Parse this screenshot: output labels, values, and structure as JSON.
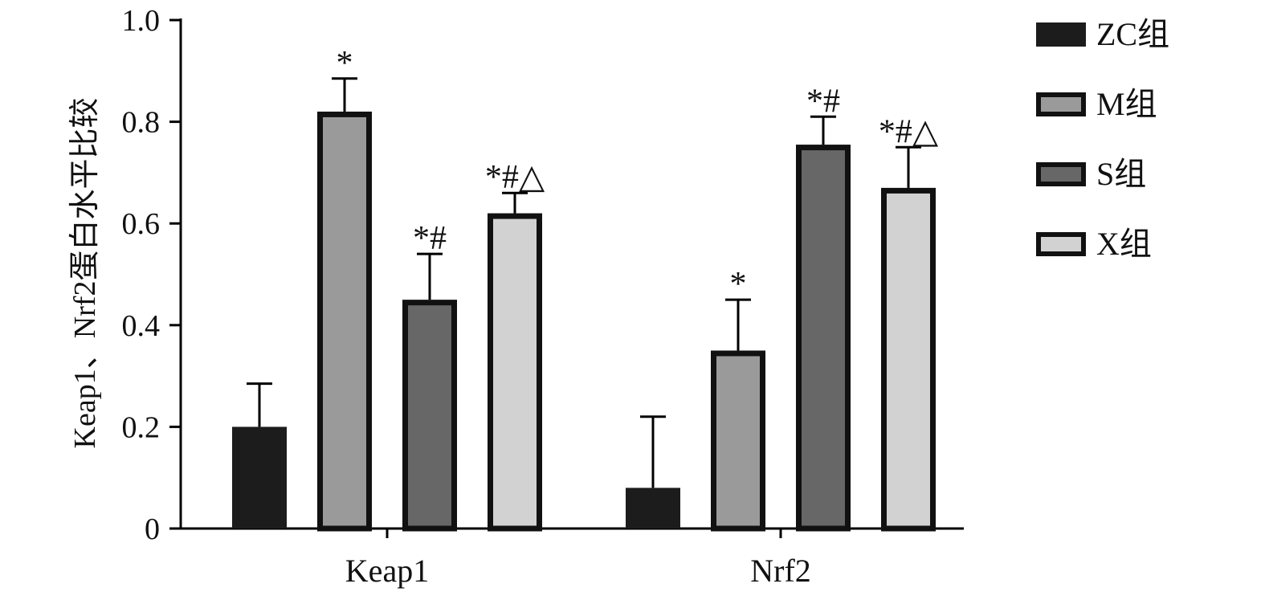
{
  "chart_data": {
    "type": "bar",
    "title": "",
    "xlabel": "",
    "ylabel": "Keap1、Nrf2蛋白水平比较",
    "ylim": [
      0,
      1.0
    ],
    "yticks": [
      "0",
      "0.2",
      "0.4",
      "0.6",
      "0.8",
      "1.0"
    ],
    "ytick_values": [
      0,
      0.2,
      0.4,
      0.6,
      0.8,
      1.0
    ],
    "categories": [
      "Keap1",
      "Nrf2"
    ],
    "legend_position": "right",
    "series": [
      {
        "name": "ZC组",
        "color": "#1c1c1c",
        "values": [
          0.2,
          0.08
        ],
        "errors": [
          0.085,
          0.14
        ],
        "annotations": [
          "",
          ""
        ]
      },
      {
        "name": "M组",
        "color": "#9a9a9a",
        "values": [
          0.82,
          0.35
        ],
        "errors": [
          0.065,
          0.1
        ],
        "annotations": [
          "*",
          "*"
        ]
      },
      {
        "name": "S组",
        "color": "#676767",
        "values": [
          0.45,
          0.755
        ],
        "errors": [
          0.09,
          0.055
        ],
        "annotations": [
          "*#",
          "*#"
        ]
      },
      {
        "name": "X组",
        "color": "#d2d2d2",
        "values": [
          0.62,
          0.67
        ],
        "errors": [
          0.04,
          0.08
        ],
        "annotations": [
          "*#△",
          "*#△"
        ]
      }
    ]
  }
}
